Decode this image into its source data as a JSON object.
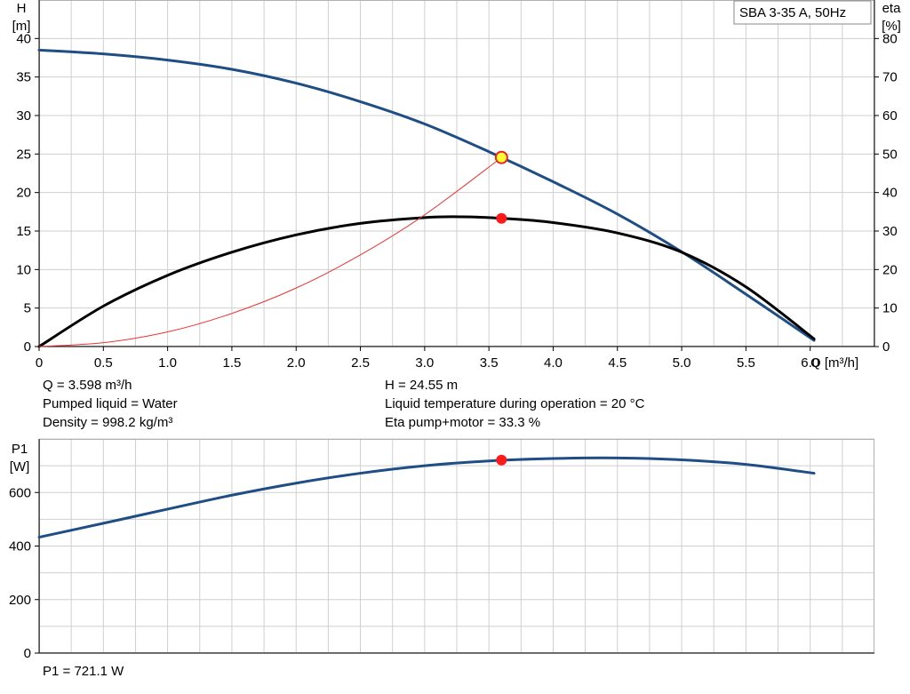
{
  "chart_data": [
    {
      "type": "line",
      "legend": "SBA 3-35 A, 50Hz",
      "xlabel": "Q [m³/h]",
      "ylabel_left": [
        "H",
        "[m]"
      ],
      "ylabel_right": [
        "eta",
        "[%]"
      ],
      "xlim": [
        0,
        6.5
      ],
      "ylim_left": [
        0,
        45
      ],
      "ylim_right": [
        0,
        90
      ],
      "x_ticks": [
        "0",
        "0.5",
        "1.0",
        "1.5",
        "2.0",
        "2.5",
        "3.0",
        "3.5",
        "4.0",
        "4.5",
        "5.0",
        "5.5",
        "6.0"
      ],
      "y_ticks_left": [
        "0",
        "5",
        "10",
        "15",
        "20",
        "25",
        "30",
        "35",
        "40"
      ],
      "y_ticks_right": [
        "0",
        "10",
        "20",
        "30",
        "40",
        "50",
        "60",
        "70",
        "80"
      ],
      "grid": true,
      "series": [
        {
          "color": "#1f4e85",
          "axis": "left",
          "x": [
            0,
            0.5,
            1.0,
            1.5,
            2.0,
            2.5,
            3.0,
            3.5,
            4.0,
            4.5,
            5.0,
            5.5,
            6.03
          ],
          "y": [
            38.5,
            38.0,
            37.2,
            36.0,
            34.2,
            31.8,
            28.9,
            25.3,
            21.4,
            17.2,
            12.3,
            6.8,
            0.8
          ]
        },
        {
          "color": "#000000",
          "axis": "right",
          "x": [
            0,
            0.5,
            1.0,
            1.5,
            2.0,
            2.5,
            3.0,
            3.3,
            3.6,
            4.0,
            4.5,
            5.0,
            5.5,
            6.03
          ],
          "y": [
            0,
            10.5,
            18.5,
            24.5,
            29.0,
            32.0,
            33.5,
            33.7,
            33.3,
            32.2,
            29.5,
            24.5,
            15.5,
            2
          ]
        },
        {
          "color": "#ee3333",
          "axis": "left",
          "x": [
            0,
            0.5,
            1.0,
            1.5,
            2.0,
            2.5,
            3.0,
            3.598
          ],
          "y": [
            0,
            0.5,
            1.9,
            4.3,
            7.6,
            11.9,
            17.1,
            24.55
          ]
        }
      ],
      "markers": [
        {
          "x": 3.598,
          "y": 24.55,
          "axis": "left",
          "fill": "#ffff33",
          "stroke": "#ee2222"
        },
        {
          "x": 3.598,
          "y": 33.3,
          "axis": "right",
          "fill": "#ff1a1a",
          "stroke": "#ff1a1a"
        }
      ]
    },
    {
      "type": "line",
      "ylabel": [
        "P1",
        "[W]"
      ],
      "xlim": [
        0,
        6.5
      ],
      "ylim": [
        0,
        800
      ],
      "y_ticks": [
        "0",
        "200",
        "400",
        "600"
      ],
      "grid": true,
      "series": [
        {
          "color": "#1f4e85",
          "x": [
            0,
            0.5,
            1.0,
            1.5,
            2.0,
            2.5,
            3.0,
            3.5,
            4.0,
            4.5,
            5.0,
            5.5,
            6.03
          ],
          "y": [
            433,
            485,
            538,
            590,
            635,
            672,
            700,
            718,
            727,
            729,
            722,
            705,
            672
          ]
        }
      ],
      "markers": [
        {
          "x": 3.598,
          "y": 721.1,
          "fill": "#ff1a1a",
          "stroke": "#ff1a1a"
        }
      ]
    }
  ],
  "info": {
    "q": "Q = 3.598 m³/h",
    "liquid": "Pumped liquid = Water",
    "density": "Density = 998.2 kg/m³",
    "h": "H = 24.55 m",
    "temp": "Liquid temperature during operation = 20 °C",
    "eta": "Eta pump+motor = 33.3 %",
    "p1": "P1 = 721.1 W"
  }
}
